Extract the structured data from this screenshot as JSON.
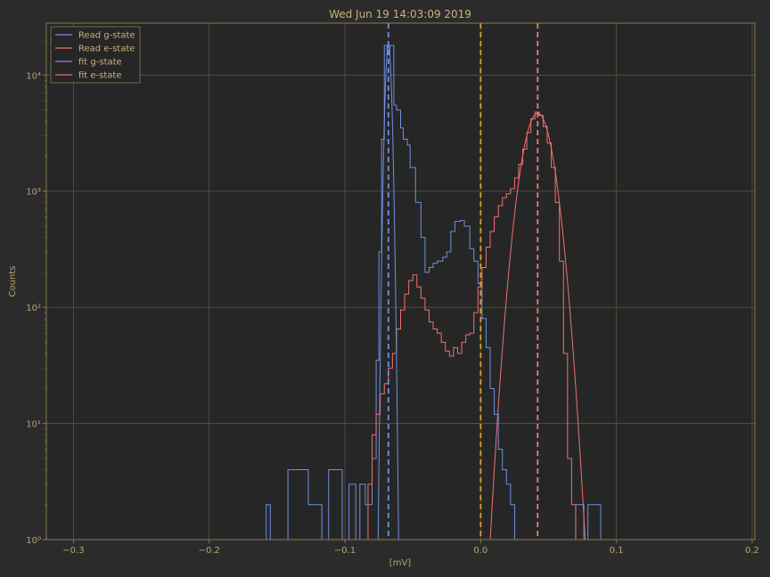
{
  "chart_data": {
    "type": "line",
    "title": "Wed Jun 19 14:03:09 2019",
    "xlabel": "[mV]",
    "ylabel": "Counts",
    "xlim": [
      -0.32,
      0.202
    ],
    "ylim": [
      1,
      28000
    ],
    "yscale": "log",
    "grid": true,
    "legend_position": "top-left",
    "x_ticks": [
      -0.3,
      -0.2,
      -0.1,
      0.0,
      0.1,
      0.2
    ],
    "x_tick_labels": [
      "−0.3",
      "−0.2",
      "−0.1",
      "0.0",
      "0.1",
      "0.2"
    ],
    "y_ticks": [
      1,
      10,
      100,
      1000,
      10000
    ],
    "y_tick_labels": [
      "10⁰",
      "10¹",
      "10²",
      "10³",
      "10⁴"
    ],
    "colors": {
      "background": "#2b2b2b",
      "axes_face": "#262626",
      "spine": "#8c7a52",
      "grid": "#5d543b",
      "g_state": "#6f8fe0",
      "e_state": "#f07070",
      "threshold": "#d9a030"
    },
    "vlines": [
      {
        "x": -0.068,
        "color": "#6f8fe0",
        "style": "dashed"
      },
      {
        "x": 0.0,
        "color": "#d9a030",
        "style": "dashed"
      },
      {
        "x": 0.042,
        "color": "#e58080",
        "style": "dashed"
      }
    ],
    "series": [
      {
        "name": "Read g-state",
        "kind": "step",
        "color": "#6f8fe0",
        "x": [
          -0.158,
          -0.155,
          -0.145,
          -0.142,
          -0.132,
          -0.127,
          -0.122,
          -0.117,
          -0.112,
          -0.107,
          -0.102,
          -0.097,
          -0.092,
          -0.089,
          -0.085,
          -0.08,
          -0.077,
          -0.075,
          -0.073,
          -0.071,
          -0.069,
          -0.067,
          -0.064,
          -0.062,
          -0.059,
          -0.057,
          -0.054,
          -0.052,
          -0.048,
          -0.044,
          -0.041,
          -0.038,
          -0.035,
          -0.032,
          -0.028,
          -0.025,
          -0.022,
          -0.019,
          -0.015,
          -0.012,
          -0.008,
          -0.005,
          -0.002,
          0.001,
          0.004,
          0.007,
          0.01,
          0.013,
          0.016,
          0.019,
          0.022,
          0.025,
          0.028,
          0.031,
          0.034,
          0.037,
          0.04,
          0.043,
          0.046,
          0.049,
          0.052,
          0.055,
          0.058,
          0.061,
          0.064,
          0.067,
          0.07,
          0.073,
          0.076,
          0.079,
          0.082,
          0.085
        ],
        "values": [
          2,
          1,
          1,
          4,
          4,
          2,
          2,
          1,
          4,
          4,
          1,
          3,
          1,
          3,
          2,
          5,
          35,
          300,
          2800,
          18000,
          15000,
          18000,
          5500,
          5000,
          3500,
          2800,
          2500,
          1600,
          800,
          400,
          200,
          220,
          240,
          250,
          270,
          300,
          450,
          550,
          560,
          500,
          320,
          250,
          160,
          80,
          45,
          20,
          12,
          6,
          4,
          3,
          2,
          1,
          1,
          1,
          1,
          1,
          1,
          1,
          1,
          1,
          1,
          1,
          1,
          1,
          1,
          1,
          2,
          2,
          1,
          2,
          2,
          2
        ]
      },
      {
        "name": "Read e-state",
        "kind": "step",
        "color": "#f07070",
        "x": [
          -0.083,
          -0.08,
          -0.077,
          -0.074,
          -0.071,
          -0.068,
          -0.065,
          -0.062,
          -0.059,
          -0.056,
          -0.053,
          -0.05,
          -0.047,
          -0.044,
          -0.041,
          -0.038,
          -0.035,
          -0.032,
          -0.029,
          -0.026,
          -0.023,
          -0.02,
          -0.017,
          -0.014,
          -0.011,
          -0.008,
          -0.005,
          -0.002,
          0.001,
          0.004,
          0.007,
          0.01,
          0.013,
          0.016,
          0.019,
          0.022,
          0.025,
          0.028,
          0.031,
          0.034,
          0.037,
          0.04,
          0.043,
          0.046,
          0.049,
          0.052,
          0.055,
          0.058,
          0.061,
          0.064,
          0.067,
          0.07,
          0.073
        ],
        "values": [
          3,
          8,
          12,
          18,
          22,
          30,
          40,
          65,
          95,
          130,
          170,
          190,
          150,
          120,
          95,
          75,
          65,
          60,
          50,
          42,
          38,
          45,
          40,
          50,
          58,
          60,
          90,
          150,
          220,
          330,
          450,
          600,
          750,
          880,
          950,
          1050,
          1300,
          1700,
          2300,
          3200,
          4200,
          4800,
          4500,
          3600,
          2600,
          1600,
          800,
          250,
          40,
          5,
          2,
          1,
          1
        ]
      },
      {
        "name": "fit g-state",
        "kind": "gaussian",
        "color": "#6f8fe0",
        "mu": -0.068,
        "sigma": 0.0017,
        "amplitude": 18000
      },
      {
        "name": "fit e-state",
        "kind": "gaussian",
        "color": "#f07070",
        "mu": 0.042,
        "sigma": 0.0085,
        "amplitude": 4700
      }
    ]
  }
}
